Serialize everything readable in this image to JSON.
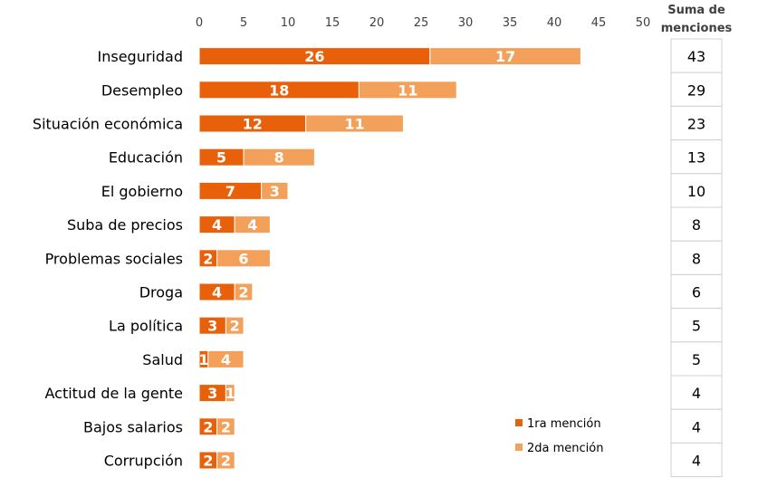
{
  "chart_data": {
    "type": "bar",
    "orientation": "horizontal",
    "stacked": true,
    "categories": [
      "Inseguridad",
      "Desempleo",
      "Situación económica",
      "Educación",
      "El gobierno",
      "Suba de precios",
      "Problemas sociales",
      "Droga",
      "La política",
      "Salud",
      "Actitud de la gente",
      "Bajos salarios",
      "Corrupción"
    ],
    "series": [
      {
        "name": "1ra mención",
        "color": "#E8600A",
        "values": [
          26,
          18,
          12,
          5,
          7,
          4,
          2,
          4,
          3,
          1,
          3,
          2,
          2
        ]
      },
      {
        "name": "2da mención",
        "color": "#F2A05A",
        "values": [
          17,
          11,
          11,
          8,
          3,
          4,
          6,
          2,
          2,
          4,
          1,
          2,
          2
        ]
      }
    ],
    "xlim": [
      0,
      50
    ],
    "xticks": [
      "0",
      "5",
      "10",
      "15",
      "20",
      "25",
      "30",
      "35",
      "40",
      "45",
      "50"
    ],
    "grid": false,
    "legend_position": "bottom-right",
    "sum_header": [
      "Suma de",
      "menciones"
    ],
    "sums": [
      "43",
      "29",
      "23",
      "13",
      "10",
      "8",
      "8",
      "6",
      "5",
      "5",
      "4",
      "4",
      "4"
    ]
  }
}
